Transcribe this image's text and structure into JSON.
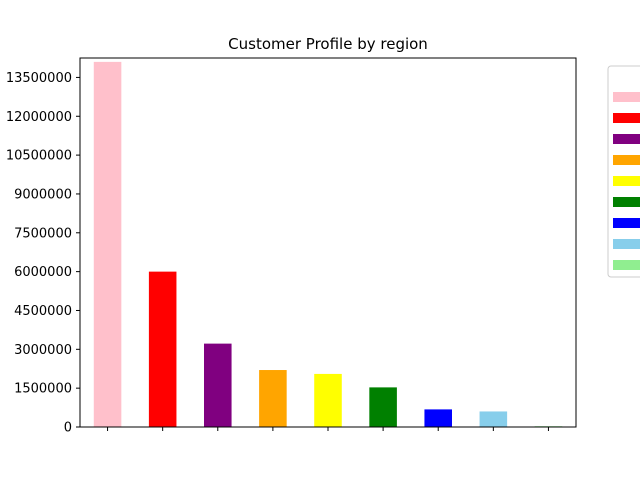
{
  "chart_data": {
    "type": "bar",
    "title": "Customer Profile by region",
    "xlabel": "",
    "ylabel": "",
    "categories": [
      "",
      "",
      "",
      "",
      "",
      "",
      "",
      "",
      ""
    ],
    "values": [
      14100000,
      6000000,
      3220000,
      2200000,
      2050000,
      1530000,
      680000,
      600000,
      30000
    ],
    "colors": [
      "#ffc0cb",
      "#ff0000",
      "#800080",
      "#ffa500",
      "#ffff00",
      "#008000",
      "#0000ff",
      "#87ceeb",
      "#90ee90"
    ],
    "ylim": [
      0,
      14250000
    ],
    "yticks": [
      0,
      1500000,
      3000000,
      4500000,
      6000000,
      7500000,
      9000000,
      10500000,
      12000000,
      13500000
    ],
    "ytick_labels": [
      "0",
      "1500000",
      "3000000",
      "4500000",
      "6000000",
      "7500000",
      "9000000",
      "10500000",
      "12000000",
      "13500000"
    ],
    "grid": false,
    "legend": {
      "placement": "right, outside plot (clipped)",
      "entries": [
        "",
        "",
        "",
        "",
        "",
        "",
        "",
        "",
        ""
      ]
    }
  }
}
